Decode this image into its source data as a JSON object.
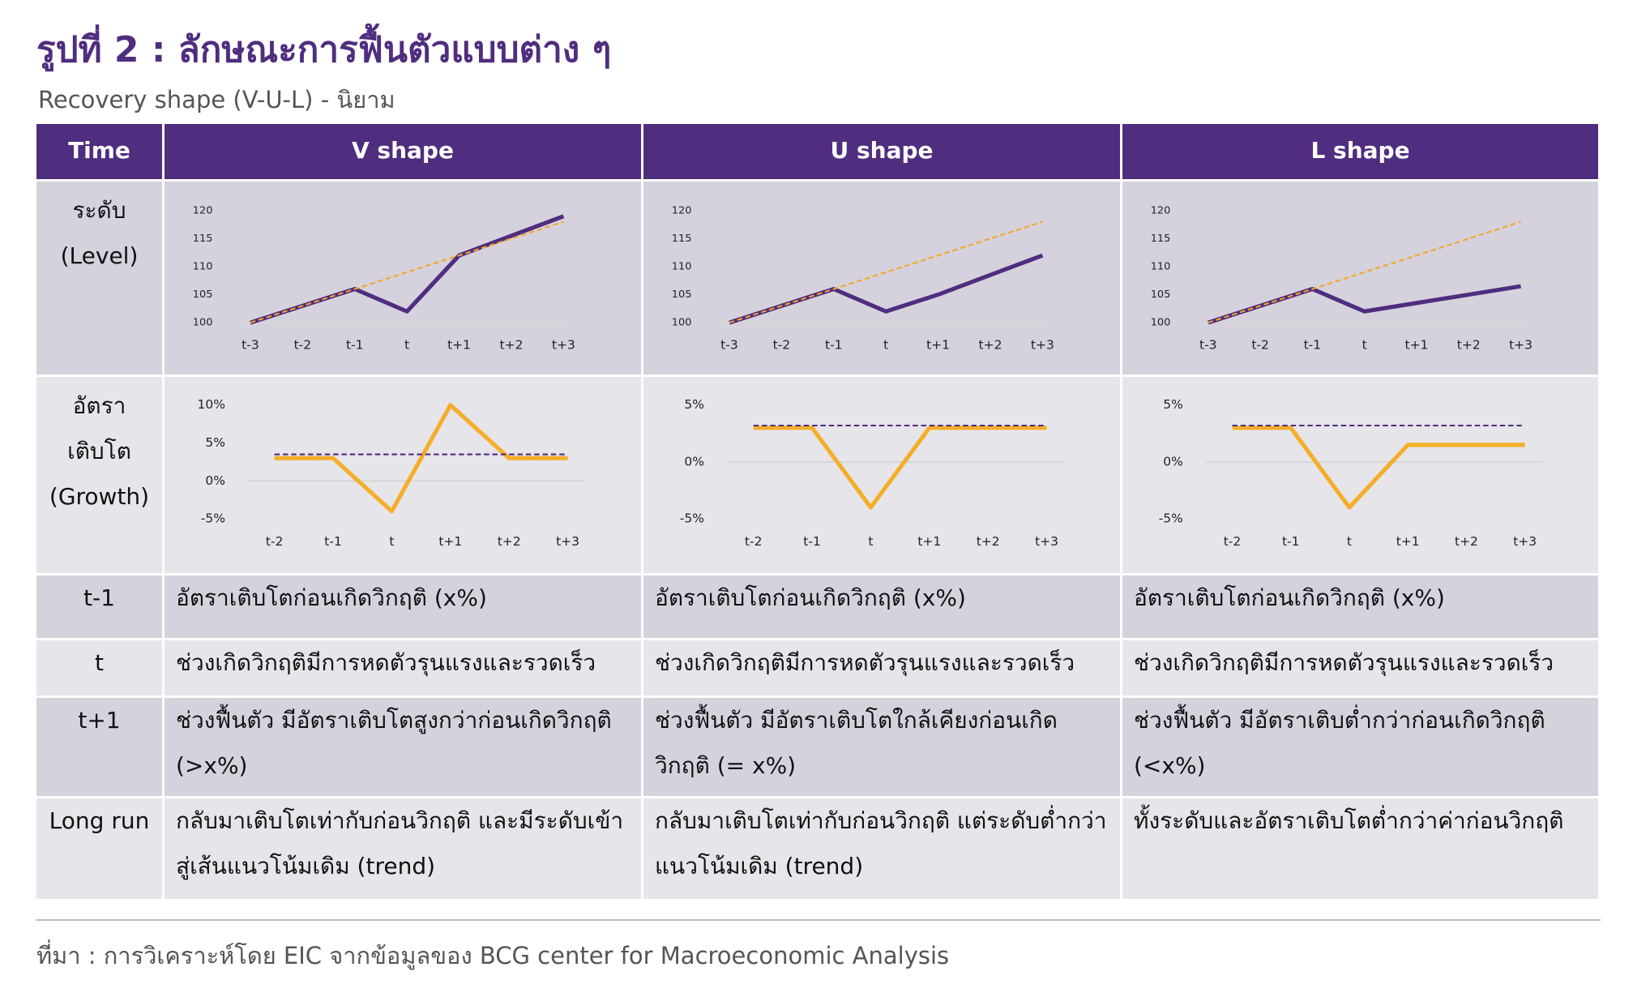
{
  "header": {
    "title": "รูปที่ 2 : ลักษณะการฟื้นตัวแบบต่าง ๆ",
    "subtitle": "Recovery shape (V-U-L) - นิยาม"
  },
  "table": {
    "header": [
      "Time",
      "V shape",
      "U shape",
      "L shape"
    ],
    "rows": [
      {
        "label": [
          "ระดับ",
          "(Level)"
        ]
      },
      {
        "label": [
          "อัตรา",
          "เติบโต",
          "(Growth)"
        ]
      },
      {
        "label": [
          "t-1"
        ],
        "cells": [
          "อัตราเติบโตก่อนเกิดวิกฤติ (x%)",
          "อัตราเติบโตก่อนเกิดวิกฤติ (x%)",
          "อัตราเติบโตก่อนเกิดวิกฤติ (x%)"
        ]
      },
      {
        "label": [
          "t"
        ],
        "cells": [
          "ช่วงเกิดวิกฤติมีการหดตัวรุนแรงและรวดเร็ว",
          "ช่วงเกิดวิกฤติมีการหดตัวรุนแรงและรวดเร็ว",
          "ช่วงเกิดวิกฤติมีการหดตัวรุนแรงและรวดเร็ว"
        ]
      },
      {
        "label": [
          "t+1"
        ],
        "cells": [
          "ช่วงฟื้นตัว มีอัตราเติบโตสูงกว่าก่อนเกิดวิกฤติ (>x%)",
          "ช่วงฟื้นตัว มีอัตราเติบโตใกล้เคียงก่อนเกิด วิกฤติ (= x%)",
          "ช่วงฟื้นตัว มีอัตราเติบต่ำกว่าก่อนเกิดวิกฤติ (<x%)"
        ]
      },
      {
        "label": [
          "Long run"
        ],
        "cells": [
          "กลับมาเติบโตเท่ากับก่อนวิกฤติ และมีระดับเข้าสู่เส้นแนวโน้มเดิม (trend)",
          "กลับมาเติบโตเท่ากับก่อนวิกฤติ แต่ระดับต่ำกว่าแนวโน้มเดิม (trend)",
          "ทั้งระดับและอัตราเติบโตต่ำกว่าค่าก่อนวิกฤติ"
        ]
      }
    ]
  },
  "chart_data": [
    {
      "type": "line",
      "categories": [
        "t-3",
        "t-2",
        "t-1",
        "t",
        "t+1",
        "t+2",
        "t+3"
      ],
      "ylim": [
        100,
        120
      ],
      "yticks": [
        100,
        105,
        110,
        115,
        120
      ],
      "series": [
        {
          "color": "#4f2d7f",
          "values": [
            100,
            103,
            106,
            102,
            112,
            115.5,
            119
          ]
        },
        {
          "color": "#f5a623",
          "line_style": "dashed",
          "values": [
            100,
            103,
            106,
            109,
            112,
            115,
            118
          ]
        }
      ]
    },
    {
      "type": "line",
      "categories": [
        "t-3",
        "t-2",
        "t-1",
        "t",
        "t+1",
        "t+2",
        "t+3"
      ],
      "ylim": [
        100,
        120
      ],
      "yticks": [
        100,
        105,
        110,
        115,
        120
      ],
      "series": [
        {
          "color": "#4f2d7f",
          "values": [
            100,
            103,
            106,
            102,
            105,
            108.5,
            112
          ]
        },
        {
          "color": "#f5a623",
          "line_style": "dashed",
          "values": [
            100,
            103,
            106,
            109,
            112,
            115,
            118
          ]
        }
      ]
    },
    {
      "type": "line",
      "categories": [
        "t-3",
        "t-2",
        "t-1",
        "t",
        "t+1",
        "t+2",
        "t+3"
      ],
      "ylim": [
        100,
        120
      ],
      "yticks": [
        100,
        105,
        110,
        115,
        120
      ],
      "series": [
        {
          "color": "#4f2d7f",
          "values": [
            100,
            103,
            106,
            102,
            103.5,
            105,
            106.5
          ]
        },
        {
          "color": "#f5a623",
          "line_style": "dashed",
          "values": [
            100,
            103,
            106,
            109,
            112,
            115,
            118
          ]
        }
      ]
    },
    {
      "type": "line",
      "categories": [
        "t-2",
        "t-1",
        "t",
        "t+1",
        "t+2",
        "t+3"
      ],
      "ylim": [
        -5,
        10
      ],
      "yticks": [
        {
          "value": 10,
          "label": "10%"
        },
        {
          "value": 5,
          "label": "5%"
        },
        {
          "value": 0,
          "label": "0%"
        },
        {
          "value": -5,
          "label": "-5%"
        }
      ],
      "series": [
        {
          "color": "#f5ae2a",
          "values": [
            3,
            3,
            -4,
            10,
            3,
            3
          ]
        },
        {
          "color": "#4f2d7f",
          "line_style": "dashed",
          "values": [
            3.5,
            3.5,
            3.5,
            3.5,
            3.5,
            3.5
          ]
        }
      ]
    },
    {
      "type": "line",
      "categories": [
        "t-2",
        "t-1",
        "t",
        "t+1",
        "t+2",
        "t+3"
      ],
      "ylim": [
        -5,
        5
      ],
      "yticks": [
        {
          "value": 5,
          "label": "5%"
        },
        {
          "value": 0,
          "label": "0%"
        },
        {
          "value": -5,
          "label": "-5%"
        }
      ],
      "series": [
        {
          "color": "#f5ae2a",
          "values": [
            3,
            3,
            -4,
            3,
            3,
            3
          ]
        },
        {
          "color": "#4f2d7f",
          "line_style": "dashed",
          "values": [
            3.2,
            3.2,
            3.2,
            3.2,
            3.2,
            3.2
          ]
        }
      ]
    },
    {
      "type": "line",
      "categories": [
        "t-2",
        "t-1",
        "t",
        "t+1",
        "t+2",
        "t+3"
      ],
      "ylim": [
        -5,
        5
      ],
      "yticks": [
        {
          "value": 5,
          "label": "5%"
        },
        {
          "value": 0,
          "label": "0%"
        },
        {
          "value": -5,
          "label": "-5%"
        }
      ],
      "series": [
        {
          "color": "#f5ae2a",
          "values": [
            3,
            3,
            -4,
            1.5,
            1.5,
            1.5
          ]
        },
        {
          "color": "#4f2d7f",
          "line_style": "dashed",
          "values": [
            3.2,
            3.2,
            3.2,
            3.2,
            3.2,
            3.2
          ]
        }
      ]
    }
  ],
  "source": "ที่มา : การวิเคราะห์โดย EIC จากข้อมูลของ BCG center for Macroeconomic Analysis"
}
